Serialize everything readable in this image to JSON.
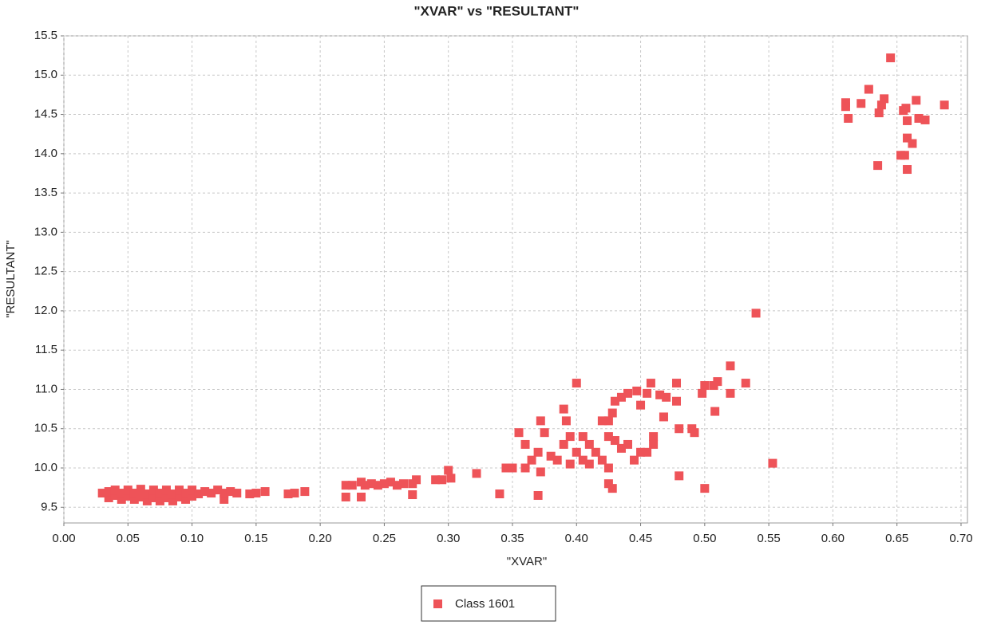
{
  "chart_data": {
    "type": "scatter",
    "title": "\"XVAR\" vs \"RESULTANT\"",
    "x_label": "\"XVAR\"",
    "y_label": "\"RESULTANT\"",
    "xlim": [
      0,
      0.705
    ],
    "ylim": [
      9.3,
      15.5
    ],
    "grid": true,
    "legend": "bottom",
    "xticks": [
      {
        "value": 0,
        "label": "0.00"
      },
      {
        "value": 0.05,
        "label": "0.05"
      },
      {
        "value": 0.1,
        "label": "0.10"
      },
      {
        "value": 0.15,
        "label": "0.15"
      },
      {
        "value": 0.2,
        "label": "0.20"
      },
      {
        "value": 0.25,
        "label": "0.25"
      },
      {
        "value": 0.3,
        "label": "0.30"
      },
      {
        "value": 0.35,
        "label": "0.35"
      },
      {
        "value": 0.4,
        "label": "0.40"
      },
      {
        "value": 0.45,
        "label": "0.45"
      },
      {
        "value": 0.5,
        "label": "0.50"
      },
      {
        "value": 0.55,
        "label": "0.55"
      },
      {
        "value": 0.6,
        "label": "0.60"
      },
      {
        "value": 0.65,
        "label": "0.65"
      },
      {
        "value": 0.7,
        "label": "0.70"
      }
    ],
    "yticks": [
      9.5,
      {
        "value": 10,
        "label": "10.0"
      },
      10.5,
      {
        "value": 11,
        "label": "11.0"
      },
      11.5,
      {
        "value": 12,
        "label": "12.0"
      },
      12.5,
      {
        "value": 13,
        "label": "13.0"
      },
      13.5,
      {
        "value": 14,
        "label": "14.0"
      },
      14.5,
      {
        "value": 15,
        "label": "15.0"
      },
      15.5
    ],
    "x": [
      0.645,
      0.61,
      0.61,
      0.612,
      0.622,
      0.628,
      0.64,
      0.638,
      0.636,
      0.655,
      0.657,
      0.665,
      0.667,
      0.672,
      0.687,
      0.658,
      0.658,
      0.662,
      0.653,
      0.656,
      0.635,
      0.658,
      0.54,
      0.52,
      0.532,
      0.52,
      0.51,
      0.507,
      0.5,
      0.498,
      0.508,
      0.553,
      0.5,
      0.48,
      0.478,
      0.478,
      0.47,
      0.465,
      0.458,
      0.455,
      0.45,
      0.447,
      0.44,
      0.435,
      0.43,
      0.428,
      0.425,
      0.42,
      0.44,
      0.435,
      0.43,
      0.425,
      0.445,
      0.45,
      0.455,
      0.46,
      0.46,
      0.468,
      0.48,
      0.49,
      0.492,
      0.4,
      0.39,
      0.392,
      0.395,
      0.405,
      0.41,
      0.4,
      0.405,
      0.41,
      0.395,
      0.385,
      0.38,
      0.37,
      0.365,
      0.36,
      0.355,
      0.372,
      0.375,
      0.37,
      0.372,
      0.36,
      0.39,
      0.415,
      0.42,
      0.425,
      0.425,
      0.428,
      0.345,
      0.35,
      0.34,
      0.322,
      0.3,
      0.302,
      0.295,
      0.29,
      0.275,
      0.272,
      0.272,
      0.265,
      0.26,
      0.255,
      0.25,
      0.245,
      0.24,
      0.235,
      0.232,
      0.232,
      0.225,
      0.22,
      0.22,
      0.188,
      0.18,
      0.175,
      0.157,
      0.15,
      0.145,
      0.03,
      0.035,
      0.035,
      0.04,
      0.04,
      0.045,
      0.045,
      0.05,
      0.05,
      0.055,
      0.055,
      0.06,
      0.06,
      0.065,
      0.065,
      0.07,
      0.07,
      0.075,
      0.075,
      0.08,
      0.08,
      0.085,
      0.085,
      0.09,
      0.09,
      0.095,
      0.095,
      0.1,
      0.1,
      0.105,
      0.11,
      0.115,
      0.12,
      0.125,
      0.125,
      0.13,
      0.135
    ],
    "series": [
      {
        "name": "Class 1601",
        "color": "#ee5358",
        "values": [
          15.22,
          14.65,
          14.6,
          14.45,
          14.64,
          14.82,
          14.7,
          14.62,
          14.52,
          14.55,
          14.58,
          14.68,
          14.45,
          14.43,
          14.62,
          14.42,
          14.2,
          14.13,
          13.98,
          13.98,
          13.85,
          13.8,
          11.97,
          11.3,
          11.08,
          10.95,
          11.1,
          11.05,
          11.05,
          10.95,
          10.72,
          10.06,
          9.74,
          9.9,
          11.08,
          10.85,
          10.9,
          10.93,
          11.08,
          10.95,
          10.8,
          10.98,
          10.95,
          10.9,
          10.85,
          10.7,
          10.6,
          10.6,
          10.3,
          10.25,
          10.35,
          10.4,
          10.1,
          10.2,
          10.2,
          10.4,
          10.3,
          10.65,
          10.5,
          10.5,
          10.45,
          11.08,
          10.75,
          10.6,
          10.4,
          10.4,
          10.3,
          10.2,
          10.1,
          10.05,
          10.05,
          10.1,
          10.15,
          10.2,
          10.1,
          10.0,
          10.45,
          10.6,
          10.45,
          9.65,
          9.95,
          10.3,
          10.3,
          10.2,
          10.1,
          10.0,
          9.8,
          9.74,
          10.0,
          10.0,
          9.67,
          9.93,
          9.97,
          9.87,
          9.85,
          9.85,
          9.85,
          9.8,
          9.66,
          9.8,
          9.78,
          9.82,
          9.8,
          9.78,
          9.8,
          9.78,
          9.82,
          9.63,
          9.78,
          9.78,
          9.63,
          9.7,
          9.68,
          9.67,
          9.7,
          9.68,
          9.67,
          9.68,
          9.62,
          9.7,
          9.65,
          9.72,
          9.6,
          9.68,
          9.64,
          9.72,
          9.6,
          9.68,
          9.63,
          9.73,
          9.58,
          9.67,
          9.62,
          9.72,
          9.58,
          9.68,
          9.62,
          9.72,
          9.58,
          9.67,
          9.63,
          9.72,
          9.6,
          9.68,
          9.64,
          9.72,
          9.67,
          9.7,
          9.68,
          9.72,
          9.6,
          9.68,
          9.7,
          9.68
        ]
      }
    ]
  }
}
